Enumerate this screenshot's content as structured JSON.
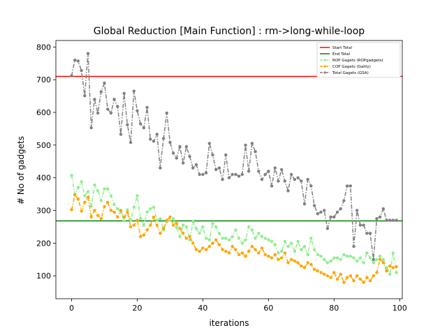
{
  "chart_data": {
    "type": "line",
    "title": "Global Reduction [Main Function] : rm->long-while-loop",
    "xlabel": "iterations",
    "ylabel": "# No of gadgets",
    "xlim": [
      -4.8,
      100.8
    ],
    "ylim": [
      30,
      820
    ],
    "xticks": [
      0,
      20,
      40,
      60,
      80,
      100
    ],
    "yticks": [
      100,
      200,
      300,
      400,
      500,
      600,
      700,
      800
    ],
    "legend_position": "top-right",
    "hlines": [
      {
        "name": "Start Total",
        "value": 710,
        "color": "#ff0000"
      },
      {
        "name": "End Total",
        "value": 268,
        "color": "#008000"
      }
    ],
    "x_start": 0,
    "series": [
      {
        "name": "ROP Gagets (ROPgadgets)",
        "color": "#90ee90",
        "values": [
          407,
          350,
          370,
          388,
          345,
          358,
          313,
          378,
          360,
          330,
          366,
          366,
          345,
          318,
          305,
          295,
          268,
          302,
          270,
          310,
          345,
          275,
          255,
          295,
          305,
          310,
          270,
          275,
          240,
          265,
          270,
          275,
          248,
          220,
          255,
          250,
          210,
          265,
          245,
          230,
          250,
          215,
          210,
          260,
          250,
          230,
          215,
          215,
          210,
          220,
          240,
          215,
          200,
          210,
          250,
          240,
          215,
          230,
          220,
          215,
          210,
          205,
          195,
          170,
          175,
          205,
          190,
          200,
          175,
          205,
          180,
          190,
          165,
          215,
          180,
          165,
          160,
          150,
          140,
          145,
          155,
          155,
          150,
          165,
          160,
          160,
          155,
          145,
          155,
          140,
          170,
          155,
          140,
          150,
          160,
          150,
          125,
          105,
          170,
          110
        ]
      },
      {
        "name": "COP Gagets (Gality)",
        "color": "#ffa500",
        "values": [
          302,
          348,
          335,
          298,
          325,
          340,
          280,
          300,
          285,
          275,
          312,
          325,
          300,
          295,
          280,
          300,
          280,
          295,
          250,
          255,
          270,
          220,
          225,
          240,
          255,
          280,
          255,
          230,
          245,
          270,
          280,
          255,
          260,
          245,
          230,
          215,
          220,
          200,
          180,
          175,
          185,
          180,
          190,
          200,
          210,
          195,
          180,
          175,
          170,
          190,
          180,
          165,
          170,
          160,
          175,
          190,
          180,
          170,
          185,
          165,
          160,
          155,
          165,
          150,
          155,
          170,
          140,
          150,
          145,
          140,
          130,
          125,
          140,
          135,
          120,
          115,
          110,
          105,
          100,
          95,
          110,
          90,
          105,
          80,
          95,
          100,
          85,
          100,
          90,
          80,
          95,
          85,
          100,
          110,
          150,
          140,
          115,
          130,
          125,
          128
        ]
      },
      {
        "name": "Total Gagets (GSA)",
        "color": "#808080",
        "values": [
          712,
          760,
          757,
          728,
          651,
          780,
          553,
          640,
          598,
          663,
          690,
          610,
          598,
          640,
          618,
          533,
          658,
          562,
          508,
          665,
          605,
          565,
          553,
          615,
          518,
          512,
          533,
          430,
          520,
          598,
          508,
          475,
          460,
          495,
          445,
          495,
          465,
          430,
          440,
          410,
          410,
          415,
          505,
          470,
          425,
          430,
          395,
          470,
          400,
          410,
          410,
          405,
          410,
          500,
          420,
          505,
          480,
          420,
          395,
          410,
          420,
          375,
          430,
          390,
          425,
          390,
          360,
          410,
          395,
          400,
          390,
          320,
          395,
          375,
          315,
          290,
          295,
          300,
          245,
          280,
          280,
          295,
          305,
          330,
          375,
          375,
          190,
          300,
          255,
          255,
          230,
          230,
          150,
          275,
          280,
          305,
          270,
          270,
          270,
          270
        ]
      }
    ]
  }
}
